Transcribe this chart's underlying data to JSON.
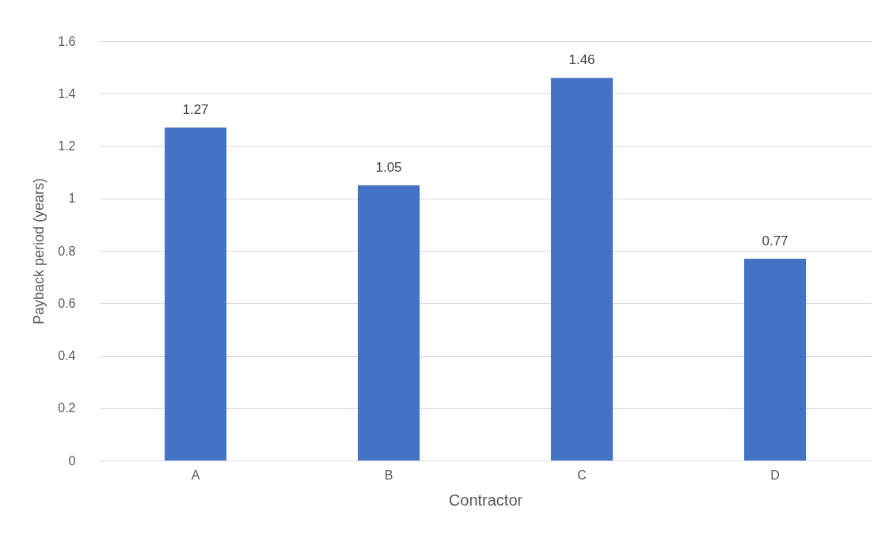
{
  "chart_data": {
    "type": "bar",
    "xlabel": "Contractor",
    "ylabel": "Payback period (years)",
    "categories": [
      "A",
      "B",
      "C",
      "D"
    ],
    "values": [
      1.27,
      1.05,
      1.46,
      0.77
    ],
    "color": "#4472c4",
    "ylim": [
      0,
      1.6
    ],
    "yticks": [
      0,
      0.2,
      0.4,
      0.6,
      0.8,
      1,
      1.2,
      1.4,
      1.6
    ],
    "grid": "y",
    "data_labels": true
  }
}
